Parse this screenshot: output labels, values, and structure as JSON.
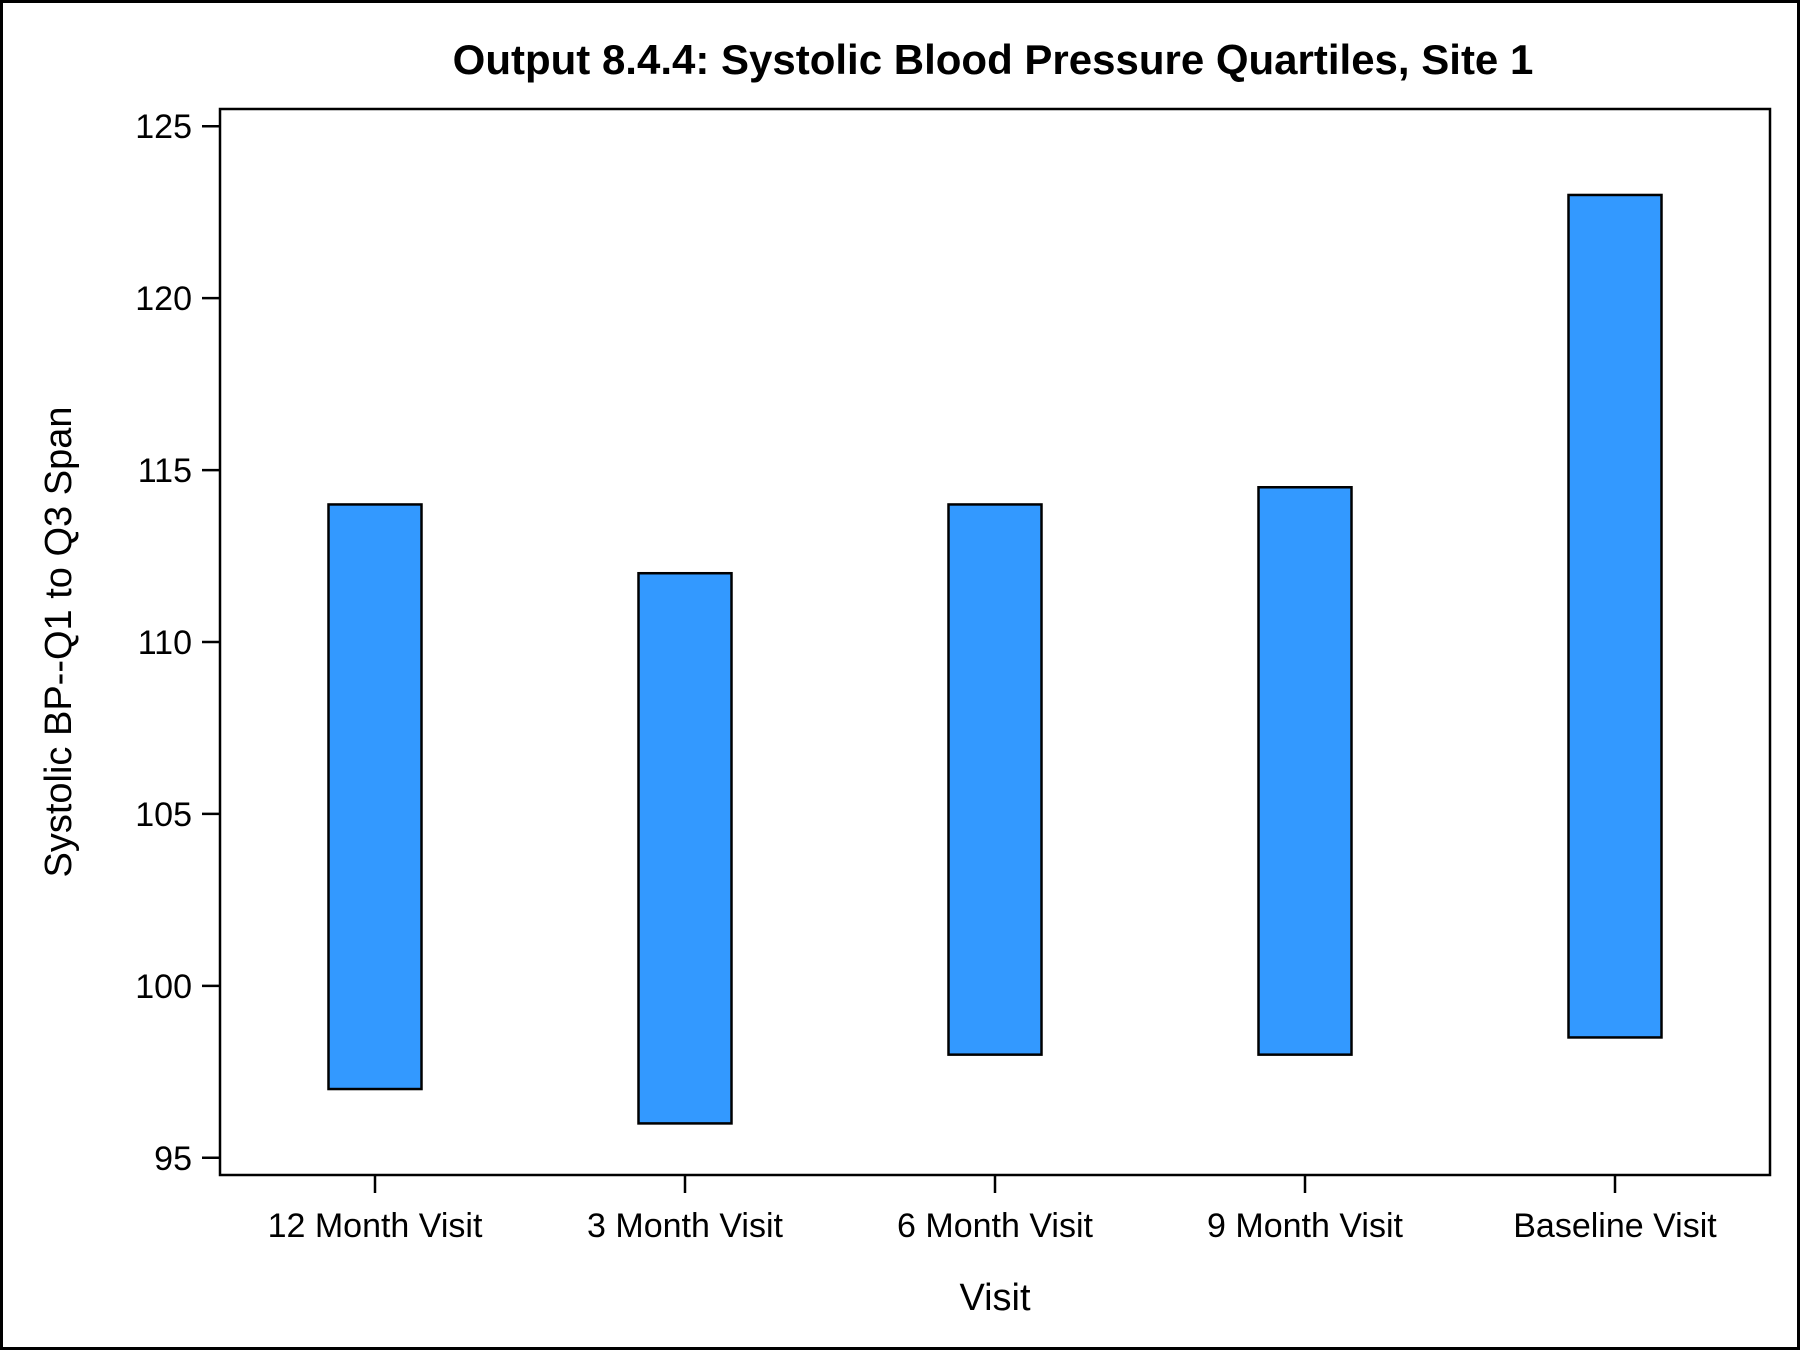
{
  "chart_data": {
    "type": "bar",
    "subtype": "floating-range",
    "title": "Output 8.4.4: Systolic Blood Pressure Quartiles, Site 1",
    "xlabel": "Visit",
    "ylabel": "Systolic BP--Q1 to Q3 Span",
    "categories": [
      "12 Month Visit",
      "3 Month Visit",
      "6 Month Visit",
      "9 Month Visit",
      "Baseline Visit"
    ],
    "series": [
      {
        "low": [
          97,
          96,
          98,
          98,
          98.5
        ],
        "high": [
          114,
          112,
          114,
          114.5,
          123
        ]
      }
    ],
    "ylim": [
      94.5,
      125.5
    ],
    "yticks": [
      95,
      100,
      105,
      110,
      115,
      120,
      125
    ],
    "grid": false,
    "legend": "none",
    "colors": {
      "bar_fill": "#3399ff",
      "bar_stroke": "#000000",
      "axis": "#000000"
    }
  }
}
